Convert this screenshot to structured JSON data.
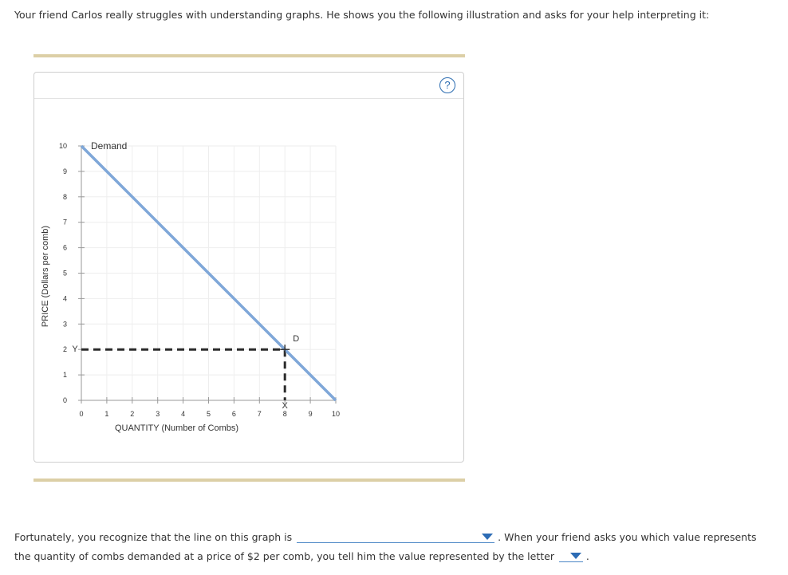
{
  "intro": "Your friend Carlos really struggles with understanding graphs. He shows you the following illustration and asks for your help interpreting it:",
  "help_icon": "?",
  "question": {
    "part1": "Fortunately, you recognize that the line on this graph is",
    "part2": ". When your friend asks you which value represents",
    "part3": "the quantity of combs demanded at a price of $2 per comb, you tell him the value represented by the letter",
    "part4": ".",
    "dropdown1_value": "",
    "dropdown2_value": ""
  },
  "colors": {
    "demand_line": "#7fa7d8",
    "dashed": "#2b2b2b",
    "rule": "#dccfa6",
    "caret": "#2d6cb5"
  },
  "chart_data": {
    "type": "line",
    "xlabel": "QUANTITY (Number of Combs)",
    "ylabel": "PRICE (Dollars per comb)",
    "xlim": [
      0,
      10
    ],
    "ylim": [
      0,
      10
    ],
    "x_ticks": [
      "0",
      "1",
      "2",
      "3",
      "4",
      "5",
      "6",
      "7",
      "8",
      "9",
      "10"
    ],
    "y_ticks": [
      "0",
      "1",
      "2",
      "3",
      "4",
      "5",
      "6",
      "7",
      "8",
      "9",
      "10"
    ],
    "grid": true,
    "series": [
      {
        "name": "Demand",
        "points": [
          [
            0,
            10
          ],
          [
            10,
            0
          ]
        ]
      }
    ],
    "guides": {
      "x": 8,
      "y": 2,
      "style": "dashed"
    },
    "point_labels": [
      {
        "text": "D",
        "x": 8,
        "y": 2
      },
      {
        "text": "Y",
        "x": 0,
        "y": 2
      },
      {
        "text": "X",
        "x": 8,
        "y": 0
      }
    ]
  }
}
